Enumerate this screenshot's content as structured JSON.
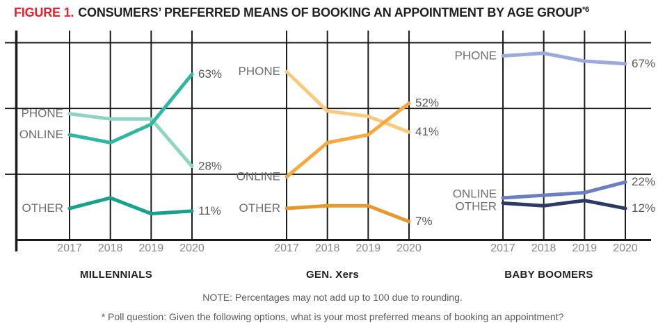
{
  "title": {
    "figure_label": "FIGURE 1.",
    "text": "CONSUMERS’ PREFERRED MEANS OF BOOKING AN APPOINTMENT BY AGE GROUP",
    "footnote_marker": "*6"
  },
  "notes": {
    "note": "NOTE: Percentages may not add up to 100 due to rounding.",
    "poll_question": "* Poll question: Given the following options, what is your most preferred means of booking an appointment?"
  },
  "colors": {
    "figure_label_red": "#e8202a",
    "title_dark": "#231f20",
    "grid_black": "#1a1a1a",
    "series_label_gray": "#6d6e71",
    "value_label_gray": "#58595b",
    "year_label_gray": "#85878a"
  },
  "chart_data": {
    "type": "line",
    "x_labels": [
      "2017",
      "2018",
      "2019",
      "2020"
    ],
    "ylim": [
      0,
      80
    ],
    "y_unit": "percent",
    "gridlines_pct": [
      25,
      50,
      75
    ],
    "grid": true,
    "legend_position": "inline-labels",
    "panels": [
      {
        "caption": "MILLENNIALS",
        "series": [
          {
            "name": "PHONE",
            "color": "#8dd4c3",
            "values": [
              48,
              46,
              46,
              28
            ],
            "end_label": "28%"
          },
          {
            "name": "ONLINE",
            "color": "#2eb7a1",
            "values": [
              40,
              37,
              44,
              63
            ],
            "end_label": "63%"
          },
          {
            "name": "OTHER",
            "color": "#16a189",
            "values": [
              12,
              16,
              10,
              11
            ],
            "end_label": "11%"
          }
        ]
      },
      {
        "caption": "GEN. Xers",
        "series": [
          {
            "name": "PHONE",
            "color": "#fac97d",
            "values": [
              64,
              49,
              47,
              41
            ],
            "end_label": "41%"
          },
          {
            "name": "ONLINE",
            "color": "#f7a93e",
            "values": [
              24,
              37,
              40,
              52
            ],
            "end_label": "52%"
          },
          {
            "name": "OTHER",
            "color": "#e6982f",
            "values": [
              12,
              13,
              13,
              7
            ],
            "end_label": "7%"
          }
        ]
      },
      {
        "caption": "BABY BOOMERS",
        "series": [
          {
            "name": "PHONE",
            "color": "#9baadd",
            "values": [
              70,
              71,
              68,
              67
            ],
            "end_label": "67%"
          },
          {
            "name": "ONLINE",
            "color": "#6b7dc5",
            "values": [
              16,
              17,
              18,
              22
            ],
            "end_label": "22%"
          },
          {
            "name": "OTHER",
            "color": "#2c3a68",
            "values": [
              14,
              13,
              15,
              12
            ],
            "end_label": "12%"
          }
        ]
      }
    ]
  }
}
